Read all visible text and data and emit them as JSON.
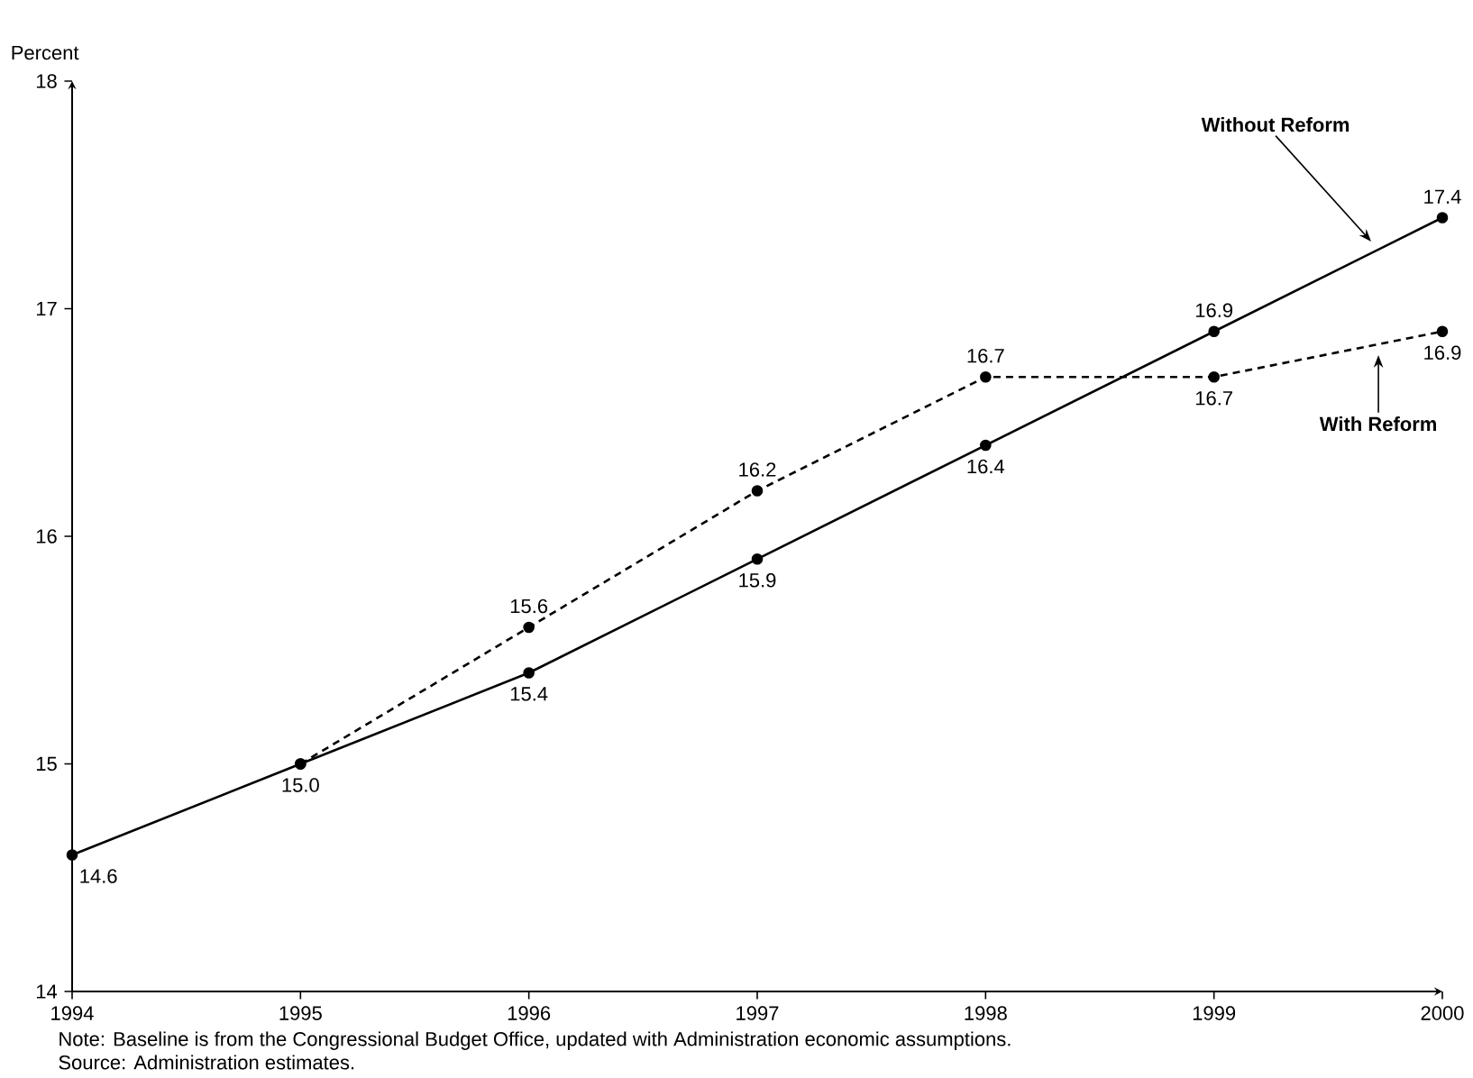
{
  "chart_data": {
    "type": "line",
    "ylabel": "Percent",
    "xlim": [
      1994,
      2000
    ],
    "xticks": [
      1994,
      1995,
      1996,
      1997,
      1998,
      1999,
      2000
    ],
    "ylim": [
      14,
      18
    ],
    "yticks": [
      14,
      15,
      16,
      17,
      18
    ],
    "marker": "circle",
    "legend": false,
    "series": [
      {
        "name": "Without Reform",
        "color": "#000000",
        "line_style": "solid",
        "x": [
          1994,
          1995,
          1996,
          1997,
          1998,
          1999,
          2000
        ],
        "values": [
          14.6,
          15.0,
          15.4,
          15.9,
          16.4,
          16.9,
          17.4
        ],
        "value_labels": [
          "14.6",
          "15.0",
          "15.4",
          "15.9",
          "16.4",
          "16.9",
          "17.4"
        ]
      },
      {
        "name": "With Reform",
        "color": "#000000",
        "line_style": "dashed",
        "x": [
          1995,
          1996,
          1997,
          1998,
          1999,
          2000
        ],
        "values": [
          15.0,
          15.6,
          16.2,
          16.7,
          16.7,
          16.9
        ],
        "value_labels": [
          null,
          "15.6",
          "16.2",
          "16.7",
          "16.7",
          "16.9"
        ]
      }
    ],
    "annotations": [
      "Note: Baseline is from the Congressional Budget Office, updated with Administration economic assumptions.",
      "Source: Administration estimates."
    ]
  }
}
